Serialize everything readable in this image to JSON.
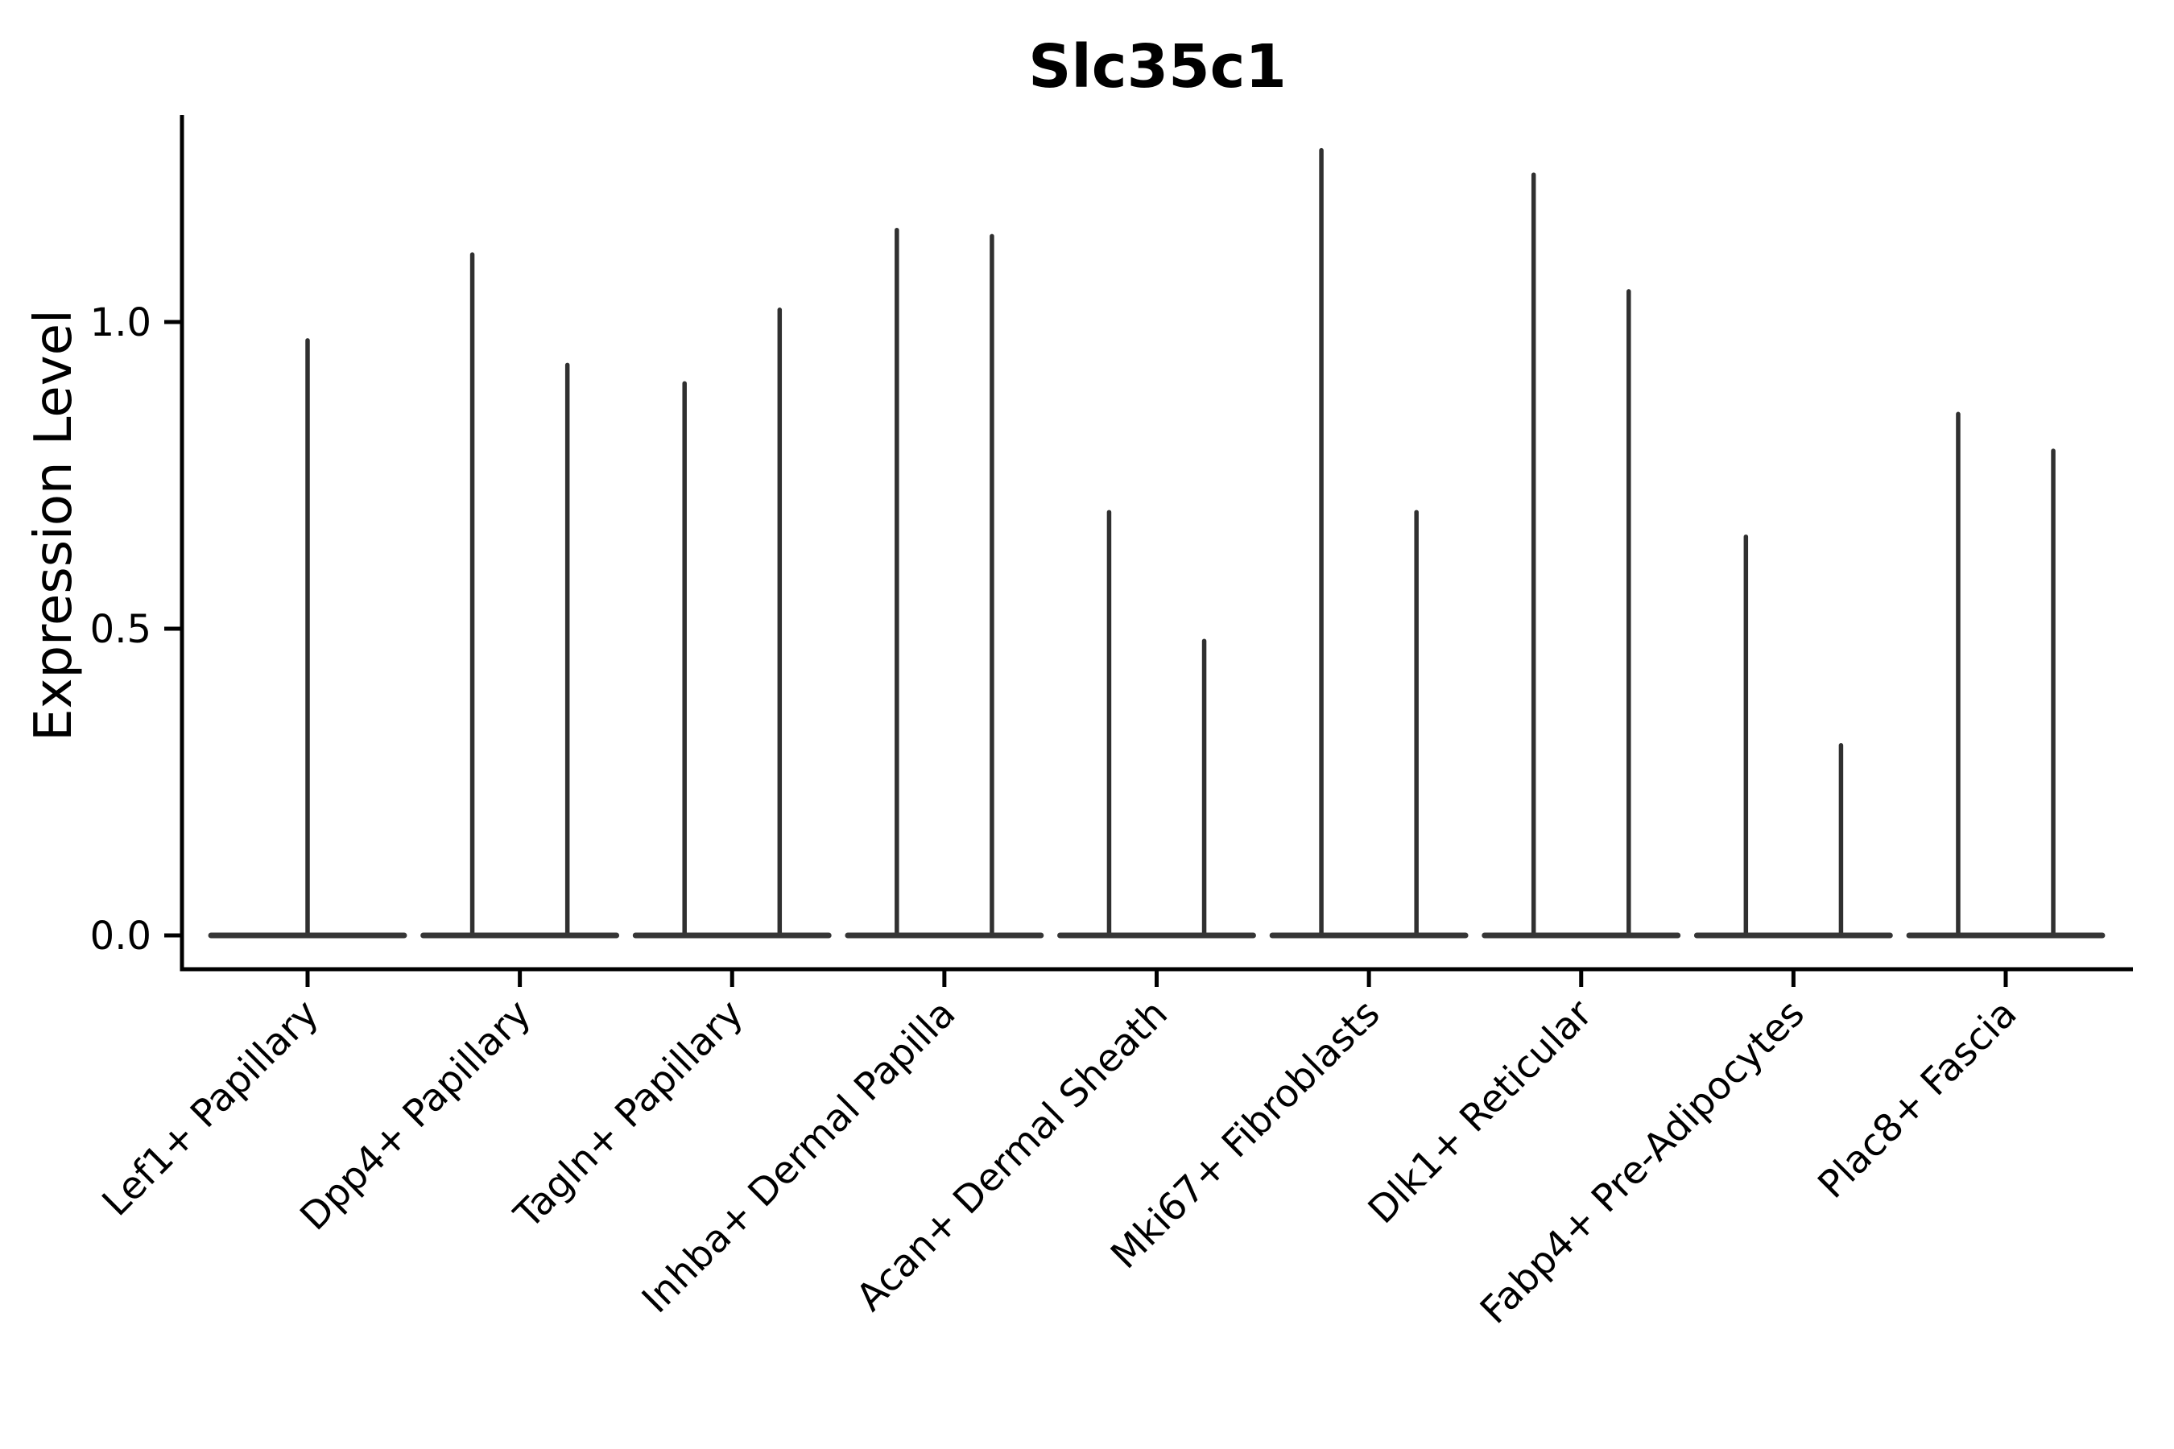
{
  "chart_data": {
    "type": "violin",
    "title": "Slc35c1",
    "xlabel": "",
    "ylabel": "Expression Level",
    "categories": [
      "Lef1+ Papillary",
      "Dpp4+ Papillary",
      "Tagln+ Papillary",
      "Inhba+ Dermal Papilla",
      "Acan+ Dermal Sheath",
      "Mki67+ Fibroblasts",
      "Dlk1+ Reticular",
      "Fabp4+ Pre-Adipocytes",
      "Plac8+ Fascia"
    ],
    "ytick_labels": [
      "0.0",
      "0.5",
      "1.0"
    ],
    "ytick_values": [
      0.0,
      0.5,
      1.0
    ],
    "ylim": [
      -0.06,
      1.34
    ],
    "grid": false,
    "legend": null,
    "baseline_value": 0.0,
    "baseline_halfwidth_frac": 0.455,
    "groups": [
      {
        "category": "Lef1+ Papillary",
        "spike_offsets": [
          0.0
        ],
        "spike_maxima": [
          0.97
        ]
      },
      {
        "category": "Dpp4+ Papillary",
        "spike_offsets": [
          -0.224,
          0.224
        ],
        "spike_maxima": [
          1.11,
          0.93
        ]
      },
      {
        "category": "Tagln+ Papillary",
        "spike_offsets": [
          -0.224,
          0.224
        ],
        "spike_maxima": [
          0.9,
          1.02
        ]
      },
      {
        "category": "Inhba+ Dermal Papilla",
        "spike_offsets": [
          -0.224,
          0.224
        ],
        "spike_maxima": [
          1.15,
          1.14
        ]
      },
      {
        "category": "Acan+ Dermal Sheath",
        "spike_offsets": [
          -0.224,
          0.224
        ],
        "spike_maxima": [
          0.69,
          0.48
        ]
      },
      {
        "category": "Mki67+ Fibroblasts",
        "spike_offsets": [
          -0.224,
          0.224
        ],
        "spike_maxima": [
          1.28,
          0.69
        ]
      },
      {
        "category": "Dlk1+ Reticular",
        "spike_offsets": [
          -0.224,
          0.224
        ],
        "spike_maxima": [
          1.24,
          1.05
        ]
      },
      {
        "category": "Fabp4+ Pre-Adipocytes",
        "spike_offsets": [
          -0.224,
          0.224
        ],
        "spike_maxima": [
          0.65,
          0.31
        ]
      },
      {
        "category": "Plac8+ Fascia",
        "spike_offsets": [
          -0.224,
          0.224
        ],
        "spike_maxima": [
          0.85,
          0.79
        ]
      }
    ],
    "style": {
      "background": "#ffffff",
      "spike_color": "#303030",
      "baseline_color": "#363636",
      "axis_color": "#000000",
      "text_color": "#000000"
    }
  }
}
